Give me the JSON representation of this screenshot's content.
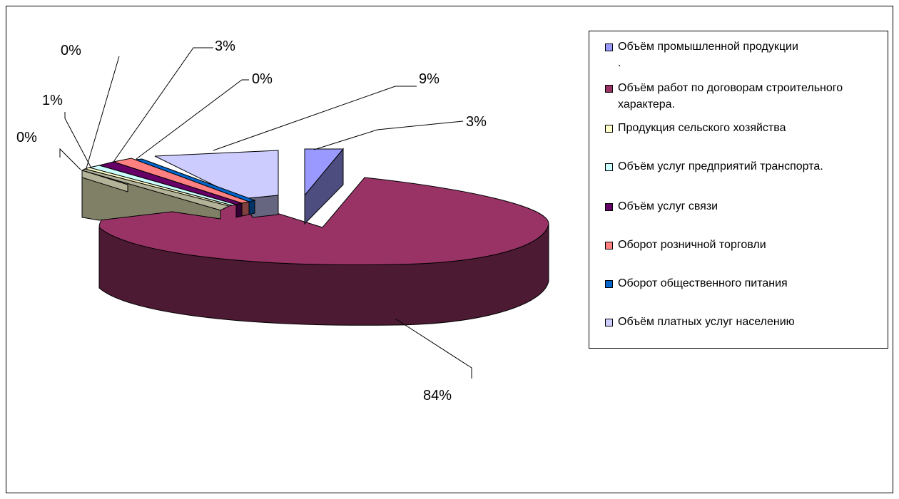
{
  "chart_data": {
    "type": "pie",
    "series": [
      {
        "name": "Объём промышленной продукции\n.",
        "value": 3,
        "label": "3%",
        "color": "#9999ff",
        "side_color": "#4d4d80"
      },
      {
        "name": "Объём работ по договорам строительного характера.",
        "value": 84,
        "label": "84%",
        "color": "#993366",
        "side_color": "#4d1a33"
      },
      {
        "name": "Продукция сельского хозяйства",
        "value": 0,
        "label": "0%",
        "color": "#ffffcc",
        "side_color": "#808066"
      },
      {
        "name": "Объём услуг предприятий транспорта.",
        "value": 0,
        "label": "0%",
        "color": "#ccffff",
        "side_color": "#668080"
      },
      {
        "name": "Объём услуг связи",
        "value": 1,
        "label": "1%",
        "color": "#660066",
        "side_color": "#330033"
      },
      {
        "name": "Оборот розничной торговли",
        "value": 3,
        "label": "3%",
        "color": "#ff8080",
        "side_color": "#804040"
      },
      {
        "name": "Оборот общественного питания",
        "value": 0,
        "label": "0%",
        "color": "#0066cc",
        "side_color": "#003366"
      },
      {
        "name": "Объём платных услуг населению",
        "value": 9,
        "label": "9%",
        "color": "#ccccff",
        "side_color": "#666680"
      }
    ],
    "extra_slice": {
      "label": "0%",
      "color": "#b3b399",
      "side_color": "#808066"
    },
    "legend_position": "right"
  }
}
